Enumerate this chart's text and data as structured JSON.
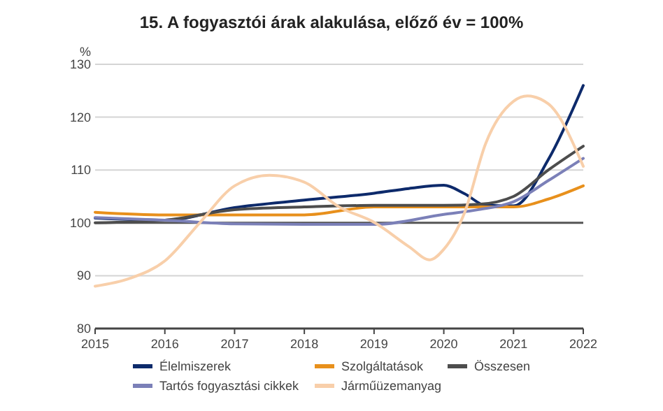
{
  "chart_data": {
    "type": "line",
    "title": "15. A fogyasztói árak alakulása, előző év = 100%",
    "ylabel": "%",
    "xlim": [
      2015,
      2022
    ],
    "xticks": [
      2015,
      2016,
      2017,
      2018,
      2019,
      2020,
      2021,
      2022
    ],
    "ylim": [
      80,
      130
    ],
    "yticks": [
      80,
      90,
      100,
      110,
      120,
      130
    ],
    "grid": "y",
    "legend": "bottom",
    "ref_lines": [
      {
        "axis": "y",
        "value": 100,
        "color": "#555555"
      }
    ],
    "series": [
      {
        "name": "Élelmiszerek",
        "color": "#0d2a6b",
        "x": [
          2015,
          2016,
          2017,
          2018,
          2019,
          2019.5,
          2020,
          2020.3,
          2020.6,
          2021,
          2021.5,
          2022
        ],
        "values": [
          100.9,
          100.5,
          102.9,
          104.3,
          105.6,
          106.5,
          107.1,
          105.5,
          103.3,
          103.2,
          112,
          126
        ]
      },
      {
        "name": "Szolgáltatások",
        "color": "#e8901c",
        "x": [
          2015,
          2016,
          2017,
          2018,
          2019,
          2020,
          2021,
          2021.5,
          2022
        ],
        "values": [
          102,
          101.5,
          101.5,
          101.5,
          103,
          103,
          103,
          104.5,
          107
        ]
      },
      {
        "name": "Összesen",
        "color": "#4d4d4d",
        "x": [
          2015,
          2016,
          2017,
          2018,
          2019,
          2020,
          2020.5,
          2021,
          2021.5,
          2022
        ],
        "values": [
          100,
          100.5,
          102.5,
          103,
          103.3,
          103.3,
          103.5,
          105,
          110,
          114.5
        ]
      },
      {
        "name": "Tartós fogyasztási cikkek",
        "color": "#7b80b8",
        "x": [
          2015,
          2016,
          2017,
          2018,
          2019,
          2020,
          2020.5,
          2021,
          2021.5,
          2022
        ],
        "values": [
          101,
          100.5,
          99.8,
          99.7,
          99.7,
          101.6,
          102.5,
          104,
          108,
          112.2
        ]
      },
      {
        "name": "Járműüzemanyag",
        "color": "#f8cfaa",
        "x": [
          2015,
          2015.5,
          2016,
          2016.5,
          2017,
          2017.5,
          2018,
          2018.5,
          2019,
          2019.5,
          2019.8,
          2020,
          2020.3,
          2020.6,
          2021,
          2021.2,
          2021.5,
          2022
        ],
        "values": [
          88,
          89.5,
          92.8,
          100,
          107,
          109,
          107.7,
          103,
          100.1,
          95.5,
          93,
          95,
          102,
          115,
          123,
          124,
          122.5,
          110.7
        ]
      }
    ]
  }
}
